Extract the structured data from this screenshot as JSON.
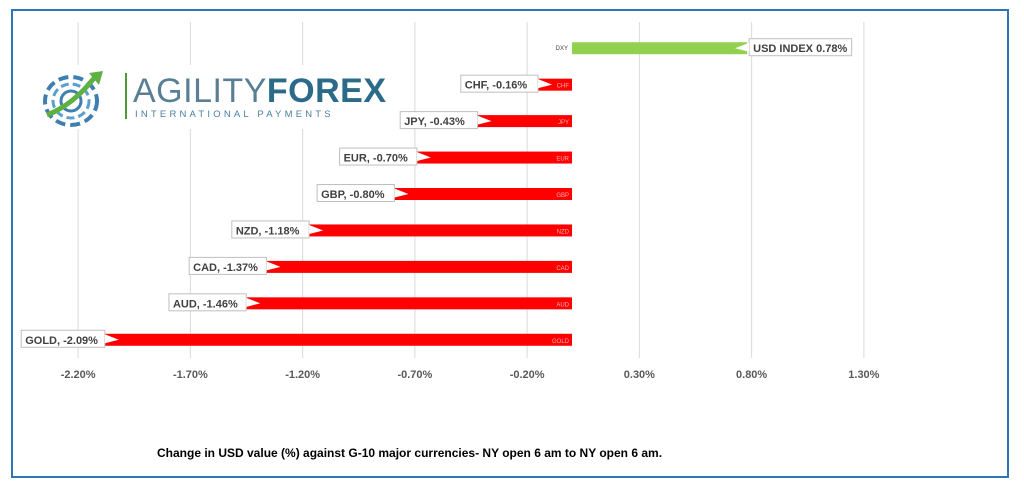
{
  "chart_data": {
    "type": "bar",
    "orientation": "horizontal",
    "categories": [
      "DXY",
      "CHF",
      "JPY",
      "EUR",
      "GBP",
      "NZD",
      "CAD",
      "AUD",
      "GOLD"
    ],
    "values": [
      0.78,
      -0.16,
      -0.43,
      -0.7,
      -0.8,
      -1.18,
      -1.37,
      -1.46,
      -2.09
    ],
    "data_labels": [
      "USD INDEX 0.78%",
      "CHF, -0.16%",
      "JPY, -0.43%",
      "EUR, -0.70%",
      "GBP, -0.80%",
      "NZD, -1.18%",
      "CAD, -1.37%",
      "AUD, -1.46%",
      "GOLD, -2.09%"
    ],
    "colors": {
      "positive": "#92d050",
      "negative": "#ff0000",
      "gridline": "#d9d9d9",
      "frame": "#2e75b6"
    },
    "x_ticks": [
      -2.2,
      -1.7,
      -1.2,
      -0.7,
      -0.2,
      0.3,
      0.8,
      1.3
    ],
    "x_tick_labels": [
      "-2.20%",
      "-1.70%",
      "-1.20%",
      "-0.70%",
      "-0.20%",
      "0.30%",
      "0.80%",
      "1.30%"
    ],
    "xlim": [
      -2.45,
      1.55
    ],
    "grid": true,
    "title": "",
    "xlabel": "",
    "ylabel": ""
  },
  "logo": {
    "word1": "AGILITY",
    "word2": "FOREX",
    "subtitle": "INTERNATIONAL PAYMENTS",
    "icon": "globe-arrow-icon"
  },
  "caption": "Change in  USD value (%)  against  G-10 major currencies- NY open 6 am to NY open 6 am."
}
